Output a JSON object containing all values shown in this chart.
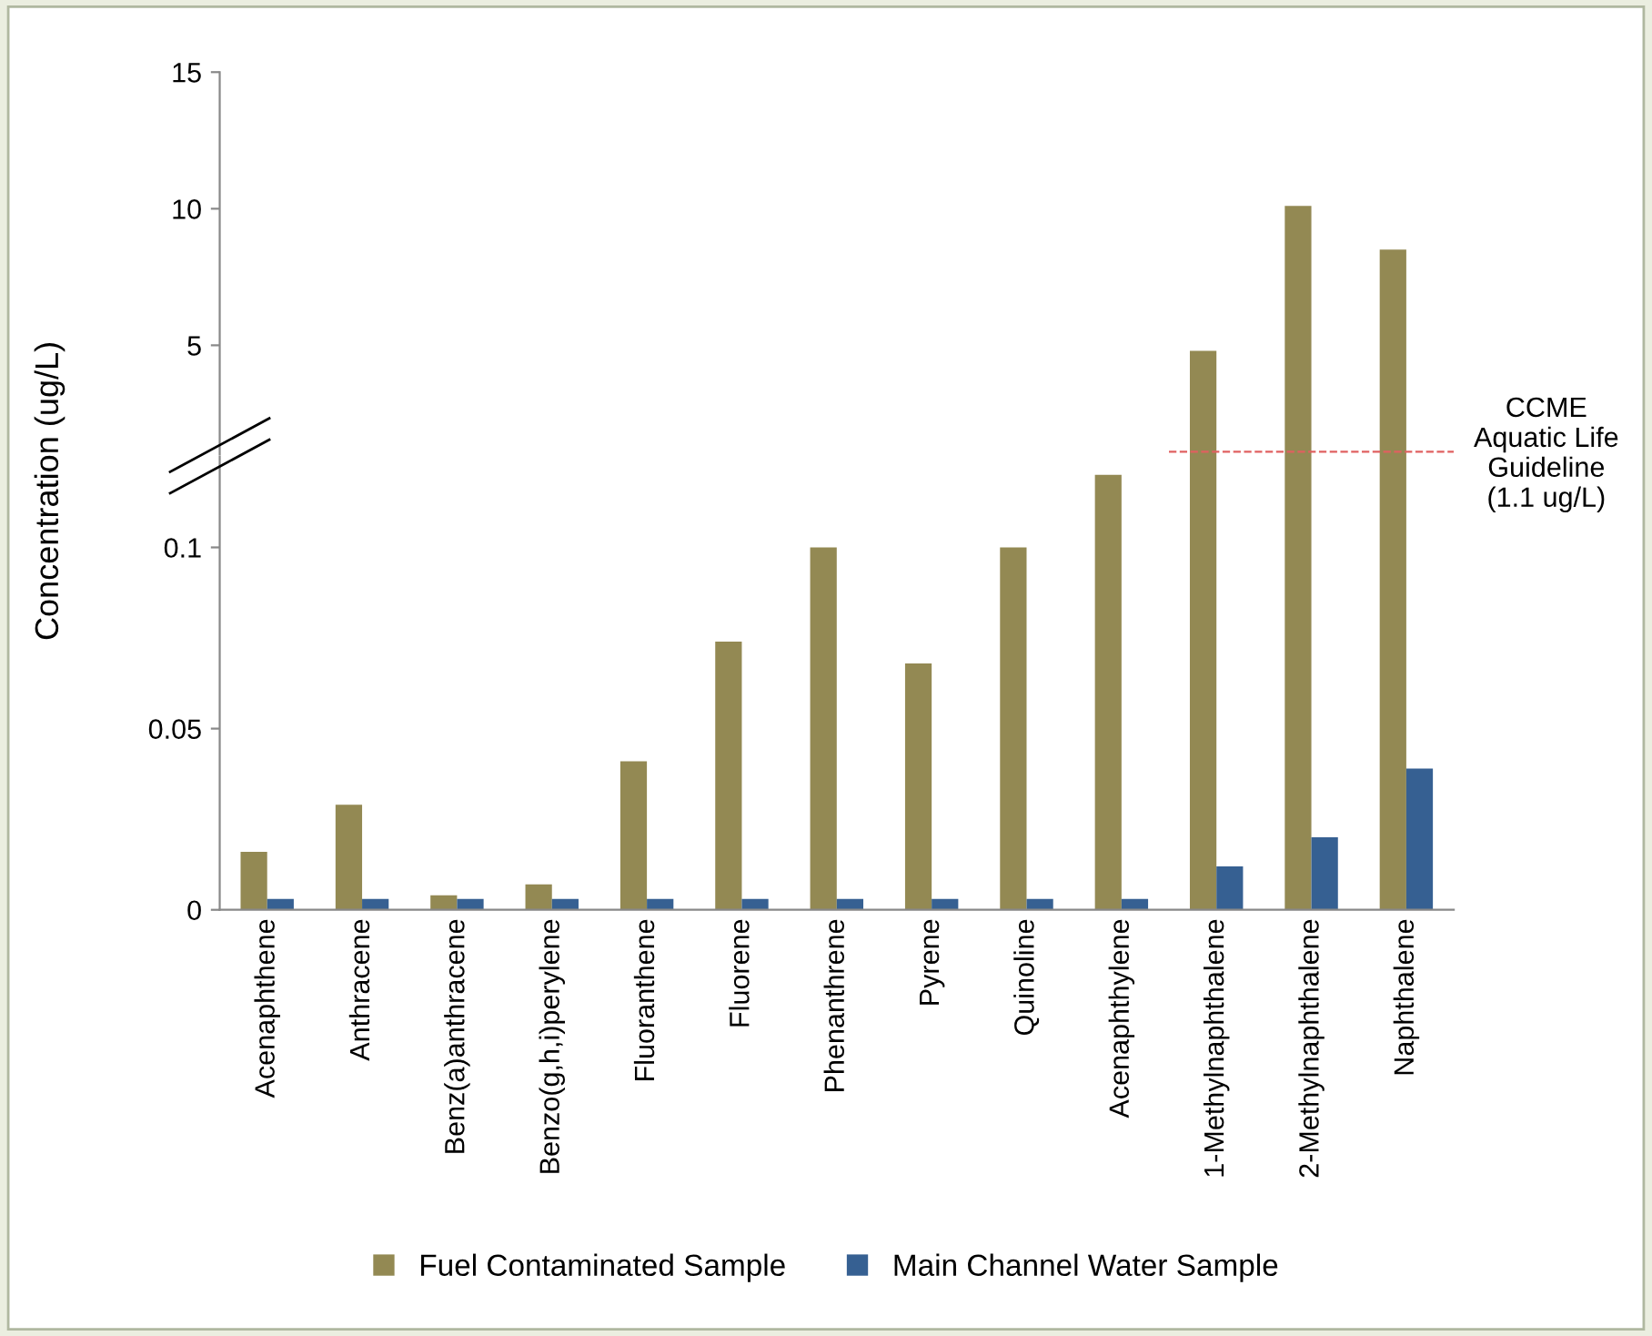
{
  "chart_data": [
    {
      "type": "bar",
      "categories": [
        null,
        null,
        null,
        null,
        null,
        null,
        null,
        null,
        null,
        null,
        null,
        null,
        null
      ],
      "series": [
        {
          "color": "#938953",
          "values": [
            null,
            null,
            null,
            null,
            null,
            null,
            null,
            null,
            null,
            null,
            4.8,
            10.1,
            8.5
          ]
        }
      ],
      "ylim": [
        1,
        15
      ],
      "yticks": [
        5,
        10,
        15
      ],
      "tick_labels": "y",
      "ref_lines": [
        {
          "axis": "y",
          "value": 1.1,
          "label": "CCME\nAquatic Life\nGuideline\n(1.1 ug/L)",
          "color": "#e06060",
          "line_style": "dashed"
        }
      ],
      "grid": false
    },
    {
      "type": "bar",
      "ylabel": "Concentration (ug/L)",
      "categories": [
        "Acenaphthene",
        "Anthracene",
        "Benz(a)anthracene",
        "Benzo(g,h,i)perylene",
        "Fluoranthene",
        "Fluorene",
        "Phenanthrene",
        "Pyrene",
        "Quinoline",
        "Acenaphthylene",
        "1-Methylnaphthalene",
        "2-Methylnaphthalene",
        "Naphthalene"
      ],
      "series": [
        {
          "name": "Fuel Contaminated Sample",
          "color": "#938953",
          "values": [
            0.016,
            0.029,
            0.004,
            0.007,
            0.041,
            0.074,
            0.1,
            0.068,
            0.1,
            0.12,
            null,
            null,
            null
          ]
        },
        {
          "name": "Main Channel Water Sample",
          "color": "#366092",
          "values": [
            0.003,
            0.003,
            0.003,
            0.003,
            0.003,
            0.003,
            0.003,
            0.003,
            0.003,
            0.003,
            0.012,
            0.02,
            0.039
          ]
        }
      ],
      "ylim": [
        0,
        0.125
      ],
      "yticks": [
        0,
        0.05,
        0.1
      ],
      "legend": "bottom",
      "grid": false
    }
  ]
}
